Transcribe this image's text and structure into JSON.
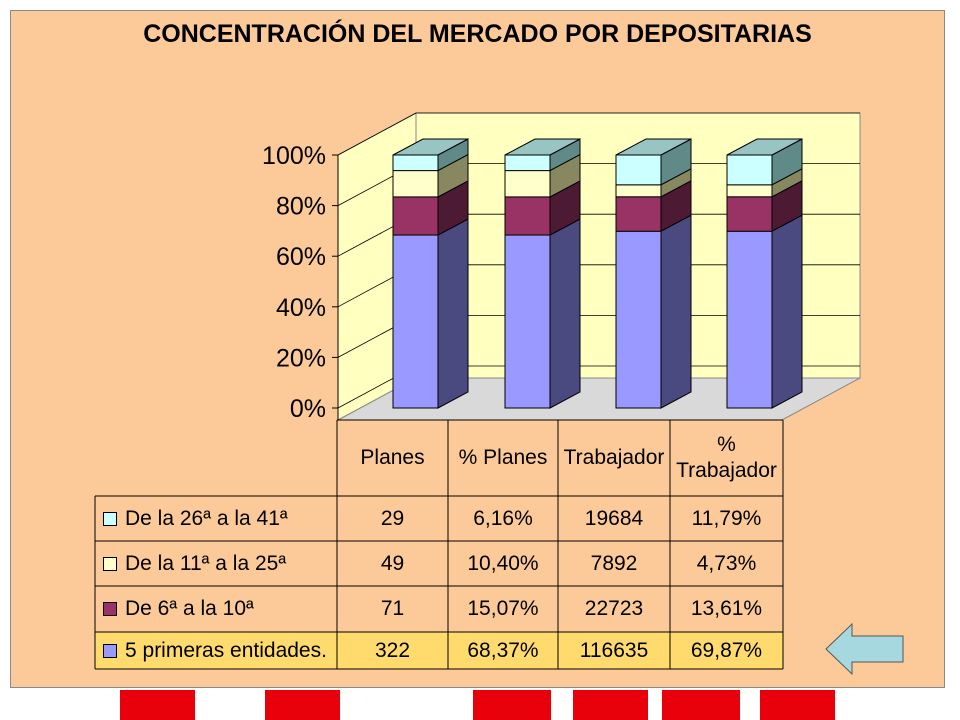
{
  "title": "CONCENTRACIÓN DEL MERCADO POR DEPOSITARIAS",
  "chart_data": {
    "type": "bar",
    "stacked": true,
    "percent_stacked": true,
    "three_d": true,
    "title": "CONCENTRACIÓN DEL MERCADO POR DEPOSITARIAS",
    "categories": [
      "Planes",
      "% Planes",
      "Trabajador",
      "% Trabajador"
    ],
    "yticks": [
      "0%",
      "20%",
      "40%",
      "60%",
      "80%",
      "100%"
    ],
    "ylim": [
      0,
      100
    ],
    "series": [
      {
        "name": "5 primeras entidades.",
        "values": [
          68.37,
          68.37,
          69.87,
          69.87
        ],
        "table": [
          "322",
          "68,37%",
          "116635",
          "69,87%"
        ],
        "color": "#9999ff"
      },
      {
        "name": "De 6ª a la 10ª",
        "values": [
          15.07,
          15.07,
          13.61,
          13.61
        ],
        "table": [
          "71",
          "15,07%",
          "22723",
          "13,61%"
        ],
        "color": "#993366"
      },
      {
        "name": "De la 11ª a la 25ª",
        "values": [
          10.4,
          10.4,
          4.73,
          4.73
        ],
        "table": [
          "49",
          "10,40%",
          "7892",
          "4,73%"
        ],
        "color": "#ffffcc"
      },
      {
        "name": "De la 26ª a la 41ª",
        "values": [
          6.16,
          6.16,
          11.79,
          11.79
        ],
        "table": [
          "29",
          "6,16%",
          "19684",
          "11,79%"
        ],
        "color": "#ccffff"
      }
    ],
    "column_headers": [
      "Planes",
      "% Planes",
      "Trabajador",
      "% Trabajador"
    ],
    "highlight_row": "5 primeras entidades.",
    "grid": true
  },
  "colors": {
    "background": "#fbca98",
    "plot_back": "#ffffc0",
    "highlight": "#ffdb6e",
    "arrow": "#a6d8e0",
    "accent_red": "#e8000b"
  },
  "icons": [
    "left-arrow-icon"
  ]
}
